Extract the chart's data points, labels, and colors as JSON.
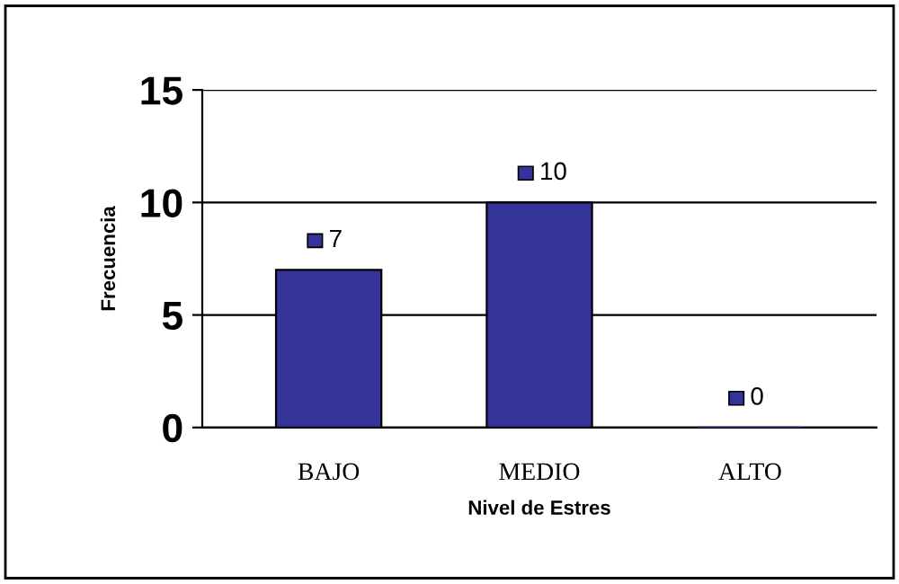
{
  "chart_data": {
    "type": "bar",
    "xlabel": "Nivel de Estres",
    "ylabel": "Frecuencia",
    "categories": [
      "BAJO",
      "MEDIO",
      "ALTO"
    ],
    "values": [
      7,
      10,
      0
    ],
    "color": "#333399",
    "ylim": [
      0,
      15
    ],
    "yticks": [
      0,
      5,
      10,
      15
    ],
    "grid": "y",
    "data_labels": true
  }
}
